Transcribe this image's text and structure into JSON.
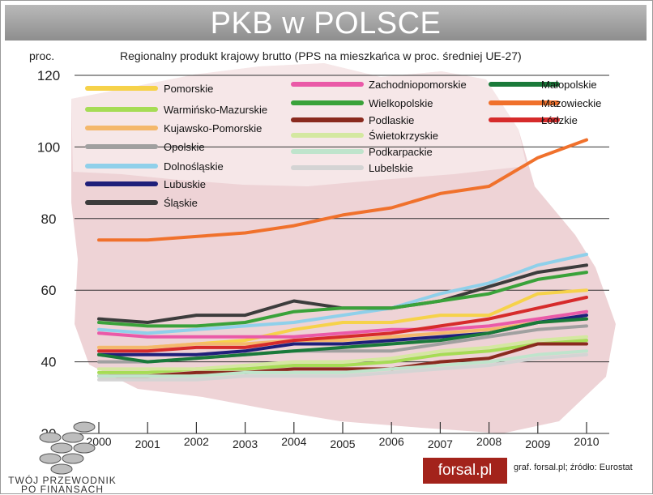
{
  "header": {
    "title": "PKB w POLSCE"
  },
  "footer": {
    "logo_text": "TWÓJ PRZEWODNIK PO FINANSACH",
    "brand": "forsal.pl",
    "credit": "graf. forsal.pl;  źródło: Eurostat"
  },
  "colors": {
    "banner": "#a0a0a0",
    "brand_bg": "#a3231b",
    "map_fill": "#ecd0d3"
  },
  "chart_data": {
    "type": "line",
    "title": "Regionalny produkt krajowy brutto (PPS na mieszkańca w proc. średniej UE-27)",
    "ylabel": "proc.",
    "ylim": [
      20,
      120
    ],
    "yticks": [
      20,
      40,
      60,
      80,
      100,
      120
    ],
    "grid": true,
    "legend": "top",
    "x": [
      "2000",
      "2001",
      "2002",
      "2003",
      "2004",
      "2005",
      "2006",
      "2007",
      "2008",
      "2009",
      "2010"
    ],
    "series": [
      {
        "name": "Pomorskie",
        "color": "#f6d24a",
        "values": [
          44,
          44,
          45,
          46,
          49,
          51,
          51,
          53,
          53,
          59,
          60
        ]
      },
      {
        "name": "Warmińsko-Mazurskie",
        "color": "#a6dc55",
        "values": [
          37,
          37,
          38,
          38,
          39,
          39,
          40,
          42,
          43,
          45,
          46
        ]
      },
      {
        "name": "Kujawsko-Pomorskie",
        "color": "#f4b86b",
        "values": [
          44,
          44,
          45,
          45,
          46,
          46,
          47,
          48,
          49,
          51,
          52
        ]
      },
      {
        "name": "Opolskie",
        "color": "#a0a0a0",
        "values": [
          40,
          40,
          41,
          42,
          43,
          43,
          43,
          45,
          47,
          49,
          50
        ]
      },
      {
        "name": "Dolnośląskie",
        "color": "#8fd0ea",
        "values": [
          49,
          48,
          49,
          50,
          51,
          53,
          55,
          59,
          62,
          67,
          70
        ]
      },
      {
        "name": "Lubuskie",
        "color": "#1f1f7a",
        "values": [
          42,
          42,
          42,
          43,
          45,
          45,
          46,
          47,
          48,
          51,
          53
        ]
      },
      {
        "name": "Śląskie",
        "color": "#3c3c3c",
        "values": [
          52,
          51,
          53,
          53,
          57,
          55,
          55,
          57,
          61,
          65,
          67
        ]
      },
      {
        "name": "Zachodniopomorskie",
        "color": "#ea5aa8",
        "values": [
          48,
          47,
          47,
          47,
          47,
          48,
          49,
          49,
          50,
          52,
          54
        ]
      },
      {
        "name": "Wielkopolskie",
        "color": "#3aa23a",
        "values": [
          51,
          50,
          50,
          51,
          54,
          55,
          55,
          57,
          59,
          63,
          65
        ]
      },
      {
        "name": "Podlaskie",
        "color": "#8a2a1e",
        "values": [
          36,
          36,
          37,
          37,
          38,
          38,
          38,
          40,
          41,
          45,
          45
        ]
      },
      {
        "name": "Świetokrzyskie",
        "color": "#d4e8a0",
        "values": [
          38,
          38,
          38,
          39,
          40,
          40,
          41,
          43,
          44,
          46,
          47
        ]
      },
      {
        "name": "Podkarpackie",
        "color": "#bfe4cc",
        "values": [
          36,
          36,
          36,
          37,
          37,
          37,
          38,
          39,
          40,
          42,
          43
        ]
      },
      {
        "name": "Lubelskie",
        "color": "#d4d4d4",
        "values": [
          35,
          35,
          35,
          36,
          36,
          36,
          37,
          38,
          39,
          41,
          42
        ]
      },
      {
        "name": "Małopolskie",
        "color": "#1a7a3a",
        "values": [
          42,
          40,
          41,
          42,
          43,
          44,
          45,
          46,
          48,
          51,
          52
        ]
      },
      {
        "name": "Mazowieckie",
        "color": "#f0712c",
        "values": [
          74,
          74,
          75,
          76,
          78,
          81,
          83,
          87,
          89,
          97,
          102
        ]
      },
      {
        "name": "Łódzkie",
        "color": "#d62b2b",
        "values": [
          43,
          43,
          44,
          44,
          46,
          47,
          48,
          50,
          52,
          55,
          58
        ]
      }
    ]
  }
}
